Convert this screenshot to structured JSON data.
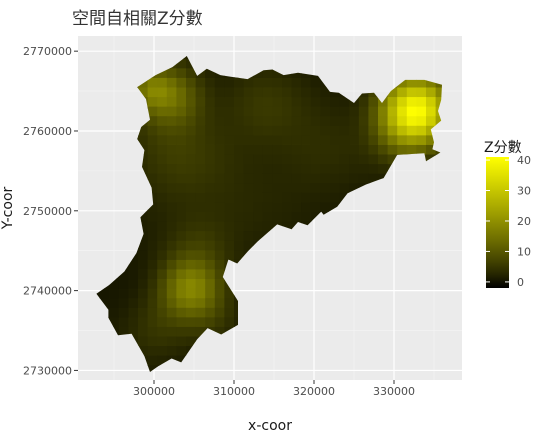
{
  "chart_data": {
    "type": "heatmap",
    "title": "空間自相關Z分數",
    "xlabel": "x-coor",
    "ylabel": "Y-coor",
    "xlim": [
      290500,
      338500
    ],
    "ylim": [
      2728800,
      2771900
    ],
    "x_ticks": [
      {
        "value": 300000,
        "label": "300000"
      },
      {
        "value": 310000,
        "label": "310000"
      },
      {
        "value": 320000,
        "label": "320000"
      },
      {
        "value": 330000,
        "label": "330000"
      }
    ],
    "y_ticks": [
      {
        "value": 2770000,
        "label": "2770000"
      },
      {
        "value": 2760000,
        "label": "2760000"
      },
      {
        "value": 2750000,
        "label": "2750000"
      },
      {
        "value": 2740000,
        "label": "2740000"
      },
      {
        "value": 2730000,
        "label": "2730000"
      }
    ],
    "grid": true,
    "fill_scale": {
      "name": "Z分數",
      "min": -2,
      "max": 41,
      "low_color": "#000000",
      "high_color": "#ffff00",
      "breaks": [
        {
          "value": 0,
          "label": "0"
        },
        {
          "value": 10,
          "label": "10"
        },
        {
          "value": 20,
          "label": "20"
        },
        {
          "value": 30,
          "label": "30"
        },
        {
          "value": 40,
          "label": "40"
        }
      ]
    },
    "legend_position": "right",
    "region_outline": [
      [
        299500,
        2761400
      ],
      [
        299000,
        2764000
      ],
      [
        297900,
        2765500
      ],
      [
        300200,
        2767000
      ],
      [
        302300,
        2768000
      ],
      [
        304100,
        2769400
      ],
      [
        305400,
        2766900
      ],
      [
        306600,
        2767800
      ],
      [
        308300,
        2767000
      ],
      [
        309600,
        2766800
      ],
      [
        311700,
        2766500
      ],
      [
        313700,
        2767600
      ],
      [
        314800,
        2767700
      ],
      [
        316200,
        2767000
      ],
      [
        318000,
        2767300
      ],
      [
        320500,
        2766900
      ],
      [
        322000,
        2764900
      ],
      [
        323100,
        2764800
      ],
      [
        325000,
        2763500
      ],
      [
        326000,
        2764700
      ],
      [
        327500,
        2764800
      ],
      [
        328500,
        2763500
      ],
      [
        329600,
        2765000
      ],
      [
        331400,
        2766400
      ],
      [
        333800,
        2766400
      ],
      [
        336000,
        2765800
      ],
      [
        335900,
        2763900
      ],
      [
        335500,
        2762500
      ],
      [
        335900,
        2761300
      ],
      [
        334600,
        2760200
      ],
      [
        335000,
        2758600
      ],
      [
        334800,
        2757700
      ],
      [
        335800,
        2757300
      ],
      [
        334000,
        2756200
      ],
      [
        333800,
        2757200
      ],
      [
        330400,
        2757000
      ],
      [
        328700,
        2754100
      ],
      [
        326500,
        2753300
      ],
      [
        324200,
        2752200
      ],
      [
        322900,
        2750500
      ],
      [
        321200,
        2749500
      ],
      [
        320900,
        2749900
      ],
      [
        319200,
        2748200
      ],
      [
        318000,
        2748600
      ],
      [
        317200,
        2747700
      ],
      [
        315400,
        2748300
      ],
      [
        313000,
        2746200
      ],
      [
        311800,
        2745000
      ],
      [
        310400,
        2743400
      ],
      [
        309300,
        2743900
      ],
      [
        308600,
        2741700
      ],
      [
        310500,
        2738700
      ],
      [
        310500,
        2735700
      ],
      [
        308400,
        2734500
      ],
      [
        306700,
        2735300
      ],
      [
        305400,
        2733900
      ],
      [
        303400,
        2731000
      ],
      [
        302200,
        2731500
      ],
      [
        300500,
        2730500
      ],
      [
        299500,
        2729800
      ],
      [
        298800,
        2731800
      ],
      [
        297200,
        2734600
      ],
      [
        295500,
        2734400
      ],
      [
        294300,
        2736600
      ],
      [
        294300,
        2737600
      ],
      [
        292800,
        2739600
      ],
      [
        294400,
        2740700
      ],
      [
        296300,
        2742400
      ],
      [
        297800,
        2744700
      ],
      [
        298700,
        2747100
      ],
      [
        298300,
        2749200
      ],
      [
        299900,
        2750800
      ],
      [
        299700,
        2752900
      ],
      [
        298500,
        2755500
      ],
      [
        298800,
        2757600
      ],
      [
        297900,
        2759000
      ],
      [
        298400,
        2760500
      ]
    ],
    "hotspots": [
      {
        "x": 332700,
        "y": 2762500,
        "z": 40,
        "radius": 3000
      },
      {
        "x": 304600,
        "y": 2740300,
        "z": 16,
        "radius": 2600
      },
      {
        "x": 302100,
        "y": 2764500,
        "z": 12,
        "radius": 2700
      },
      {
        "x": 299400,
        "y": 2765400,
        "z": 9,
        "radius": 1800
      },
      {
        "x": 302500,
        "y": 2757500,
        "z": 5,
        "radius": 4500
      },
      {
        "x": 313500,
        "y": 2763500,
        "z": 4,
        "radius": 3500
      },
      {
        "x": 320500,
        "y": 2758000,
        "z": 3,
        "radius": 4500
      },
      {
        "x": 305500,
        "y": 2745500,
        "z": 4,
        "radius": 3000
      },
      {
        "x": 300500,
        "y": 2735500,
        "z": 4,
        "radius": 3000
      },
      {
        "x": 307500,
        "y": 2736000,
        "z": 3,
        "radius": 2500
      },
      {
        "x": 310500,
        "y": 2751000,
        "z": 2,
        "radius": 5000
      },
      {
        "x": 330500,
        "y": 2758500,
        "z": 3,
        "radius": 2500
      }
    ],
    "background_z": 0.6
  }
}
